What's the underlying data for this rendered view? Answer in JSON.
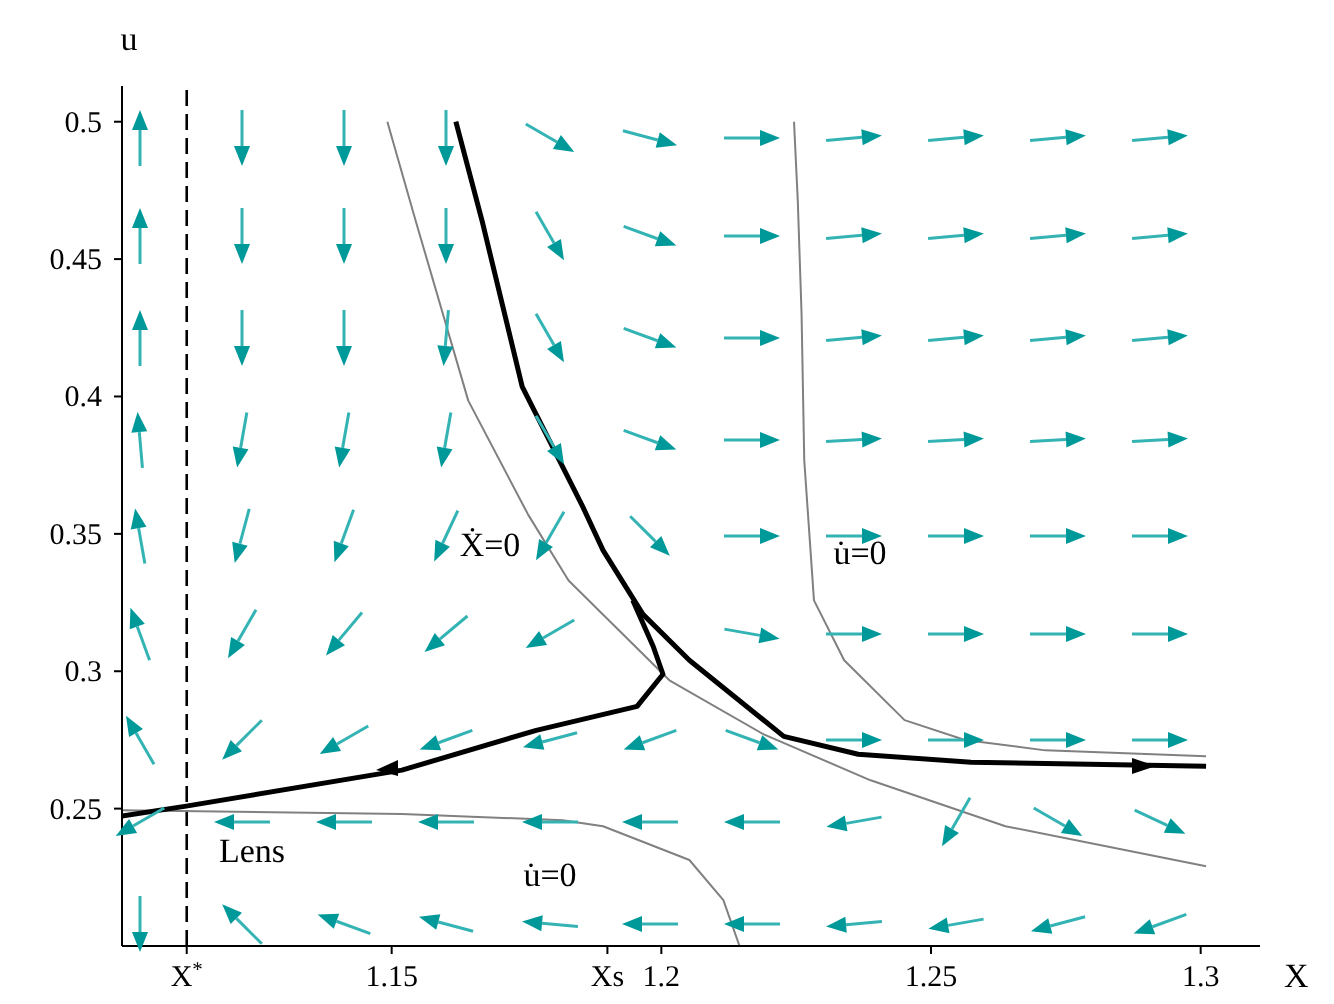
{
  "chart_data": {
    "type": "line",
    "xlabel": "X",
    "ylabel": "u",
    "xlim": [
      1.1,
      1.311
    ],
    "ylim": [
      0.2,
      0.513
    ],
    "xticks": [
      {
        "value": 1.112,
        "label": "X$^{*}$"
      },
      1.15,
      {
        "value": 1.19,
        "label": "Xs"
      },
      1.2,
      1.25,
      1.3
    ],
    "yticks": [
      0.25,
      0.3,
      0.35,
      0.4,
      0.45,
      0.5
    ],
    "marker": "none",
    "line_style": "solid",
    "series": [
      {
        "color": "#808080",
        "x": [
          1.1492,
          1.1545,
          1.1642,
          1.1753,
          1.1828,
          1.2015,
          1.219,
          1.2388,
          1.2638,
          1.301
        ],
        "values": [
          0.5,
          0.4636,
          0.3985,
          0.357,
          0.333,
          0.2967,
          0.277,
          0.2603,
          0.2436,
          0.229
        ]
      },
      {
        "color": "#808080",
        "x": [
          1.2246,
          1.2253,
          1.226,
          1.2265,
          1.2283,
          1.2339,
          1.2451,
          1.2563,
          1.2712,
          1.301
        ],
        "values": [
          0.5,
          0.4712,
          0.43,
          0.3767,
          0.3258,
          0.304,
          0.2822,
          0.275,
          0.2712,
          0.2691
        ]
      },
      {
        "color": "#808080",
        "x": [
          1.1,
          1.1519,
          1.1817,
          1.1892,
          1.2052,
          1.2115,
          1.2145
        ],
        "values": [
          0.2494,
          0.248,
          0.2458,
          0.2436,
          0.2313,
          0.2167,
          0.2
        ]
      },
      {
        "color": "#000000",
        "x": [
          1.1619,
          1.1668,
          1.1742,
          1.1854,
          1.1892,
          1.1966,
          1.2052,
          1.2227,
          1.2365,
          1.2574,
          1.301
        ],
        "values": [
          0.5,
          0.4636,
          0.4036,
          0.36,
          0.344,
          0.3207,
          0.304,
          0.2763,
          0.2698,
          0.2669,
          0.2654
        ]
      },
      {
        "color": "#000000",
        "x": [
          1.1,
          1.1119,
          1.1519,
          1.1768,
          1.1955,
          1.2003,
          1.1985,
          1.1947
        ],
        "values": [
          0.2473,
          0.2509,
          0.264,
          0.2785,
          0.2872,
          0.2989,
          0.309,
          0.3258
        ]
      }
    ],
    "ref_lines": [
      {
        "axis": "x",
        "value": 1.112,
        "color": "#000000",
        "line_style": "dashed"
      }
    ],
    "annotations": [
      "Ẋ=0",
      "u̇=0",
      "u̇=0",
      "Lens"
    ]
  }
}
